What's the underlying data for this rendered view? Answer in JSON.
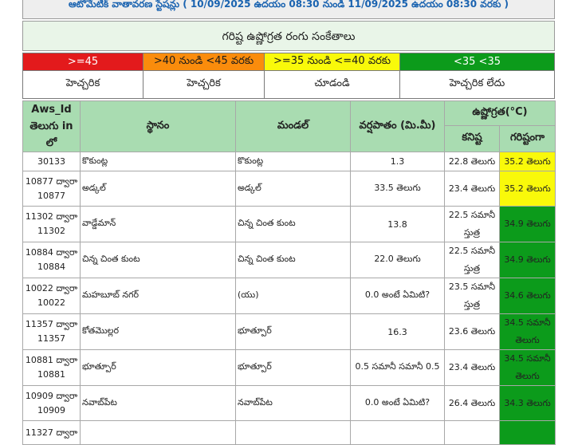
{
  "header": {
    "caption": "ఆటోమేటిక్ వాతావరణ స్టేషన్లు ( 10/09/2025 ఉదయం 08:30 నుండి 11/09/2025 ఉదయం 08:30 వరకు )"
  },
  "legend": {
    "title": "గరిష్ట ఉష్ణోగ్రత రంగు సంకేతాలు",
    "ranges": [
      {
        "range": ">=45",
        "label": "హెచ్చరిక",
        "color": "#e31a1c"
      },
      {
        "range": ">40 నుండి <45 వరకు",
        "label": "హెచ్చరిక",
        "color": "#fa8c0c"
      },
      {
        "range": ">=35 నుండి <=40 వరకు",
        "label": "చూడండి",
        "color": "#f9f90a"
      },
      {
        "range": "<35 <35",
        "label": "హెచ్చరిక లేదు",
        "color": "#0c9b1b"
      }
    ]
  },
  "table": {
    "headers": {
      "aws_id": "Aws_Id తెలుగు in లో",
      "station": "స్థానం",
      "mandal": "మండల్",
      "rainfall": "వర్షపాతం (మి.మీ)",
      "temperature": "ఉష్ణోగ్రత(°C)",
      "min": "కనిష్ట",
      "max": "గరిష్టంగా"
    },
    "rows": [
      {
        "aws_id": "30133",
        "station": "కొకుంట్ల",
        "mandal": "కొకుంట్ల",
        "rainfall": "1.3",
        "min": "22.8 తెలుగు",
        "max": "35.2 తెలుగు",
        "max_color": "#f9f90a"
      },
      {
        "aws_id": "10877 ద్వారా 10877",
        "station": "అడ్కల్",
        "mandal": "అడ్కల్",
        "rainfall": "33.5 తెలుగు",
        "min": "23.4 తెలుగు",
        "max": "35.2 తెలుగు",
        "max_color": "#f9f90a"
      },
      {
        "aws_id": "11302 ద్వారా 11302",
        "station": "వాడ్డేమాన్",
        "mandal": "చిన్న చింత కుంట",
        "rainfall": "13.8",
        "min": "22.5 సమానీ స్తుత్ర",
        "max": "34.9 తెలుగు",
        "max_color": "#0c9b1b"
      },
      {
        "aws_id": "10884 ద్వారా 10884",
        "station": "చిన్న చింత కుంట",
        "mandal": "చిన్న చింత కుంట",
        "rainfall": "22.0 తెలుగు",
        "min": "22.5 సమానీ స్తుత్ర",
        "max": "34.9 తెలుగు",
        "max_color": "#0c9b1b"
      },
      {
        "aws_id": "10022 ద్వారా 10022",
        "station": "మహబూబ్ నగర్",
        "mandal": "(యు)",
        "rainfall": "0.0 అంటే ఏమిటి?",
        "min": "23.5 సమానీ స్తుత్ర",
        "max": "34.6 తెలుగు",
        "max_color": "#0c9b1b"
      },
      {
        "aws_id": "11357 ద్వారా 11357",
        "station": "కోతమొల్లర",
        "mandal": "భూత్పూర్",
        "rainfall": "16.3",
        "min": "23.6 తెలుగు",
        "max": "34.5 సమానీ తెలుగు",
        "max_color": "#0c9b1b"
      },
      {
        "aws_id": "10881 ద్వారా 10881",
        "station": "భూత్పూర్",
        "mandal": "భూత్పూర్",
        "rainfall": "0.5 సమానీ సమానీ 0.5",
        "min": "23.4 తెలుగు",
        "max": "34.5 సమానీ తెలుగు",
        "max_color": "#0c9b1b"
      },
      {
        "aws_id": "10909 ద్వారా 10909",
        "station": "నవాబ్‌పేట",
        "mandal": "నవాబ్‌పేట",
        "rainfall": "0.0 అంటే ఏమిటి?",
        "min": "26.4 తెలుగు",
        "max": "34.3 తెలుగు",
        "max_color": "#0c9b1b"
      },
      {
        "aws_id": "11327 ద్వారా",
        "station": "",
        "mandal": "",
        "rainfall": "",
        "min": "",
        "max": "",
        "max_color": "#0c9b1b"
      }
    ]
  }
}
